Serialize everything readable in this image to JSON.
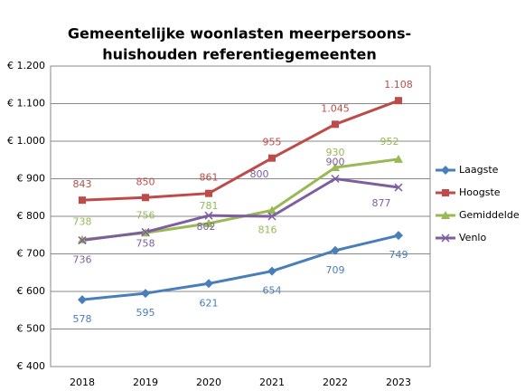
{
  "chart_data": {
    "type": "line",
    "title": [
      "Gemeentelijke woonlasten meerpersoons-",
      "huishouden referentiegemeenten"
    ],
    "categories": [
      "2018",
      "2019",
      "2020",
      "2021",
      "2022",
      "2023"
    ],
    "series": [
      {
        "name": "Laagste",
        "color": "#4a7ebb",
        "marker": "diamond",
        "values": [
          578,
          595,
          621,
          654,
          709,
          749
        ]
      },
      {
        "name": "Hoogste",
        "color": "#be4b48",
        "marker": "square",
        "values": [
          843,
          850,
          861,
          955,
          1045,
          1108
        ],
        "value_labels": [
          "843",
          "850",
          "861",
          "955",
          "1.045",
          "1.108"
        ]
      },
      {
        "name": "Gemiddelde",
        "color": "#98b954",
        "marker": "triangle",
        "values": [
          738,
          756,
          781,
          816,
          930,
          952
        ]
      },
      {
        "name": "Venlo",
        "color": "#7d5fa0",
        "marker": "x",
        "values": [
          736,
          758,
          802,
          800,
          900,
          877
        ]
      }
    ],
    "ylim": [
      400,
      1200
    ],
    "yticks": [
      {
        "value": 400,
        "label": "€ 400"
      },
      {
        "value": 500,
        "label": "€ 500"
      },
      {
        "value": 600,
        "label": "€ 600"
      },
      {
        "value": 700,
        "label": "€ 700"
      },
      {
        "value": 800,
        "label": "€ 800"
      },
      {
        "value": 900,
        "label": "€ 900"
      },
      {
        "value": 1000,
        "label": "€ 1.000"
      },
      {
        "value": 1100,
        "label": "€ 1.100"
      },
      {
        "value": 1200,
        "label": "€ 1.200"
      }
    ],
    "grid": true,
    "legend": "right"
  }
}
